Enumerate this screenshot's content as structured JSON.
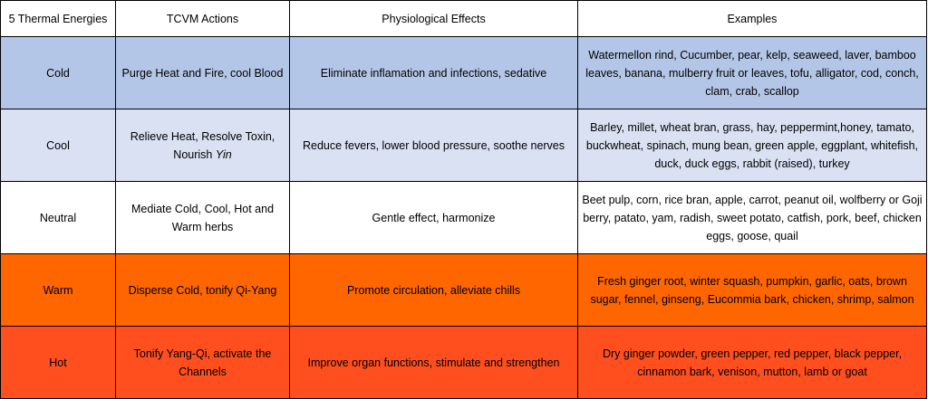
{
  "headers": [
    "5 Thermal Energies",
    "TCVM Actions",
    "Physiological Effects",
    "Examples"
  ],
  "colors": {
    "cold": "#b4c6e7",
    "cool": "#d9e1f2",
    "neutral": "#ffffff",
    "warm": "#ff6600",
    "hot": "#ff4f1f",
    "border": "#000000"
  },
  "rows": [
    {
      "energy": "Cold",
      "action": "Purge Heat and Fire, cool Blood",
      "action_emph": "",
      "action_tail": "",
      "effects": "Eliminate inflamation and infections, sedative",
      "examples": "Watermellon rind, Cucumber, pear, kelp, seaweed, laver, bamboo leaves, banana, mulberry fruit or leaves, tofu, alligator, cod, conch, clam, crab, scallop"
    },
    {
      "energy": "Cool",
      "action": "Relieve Heat, Resolve Toxin, Nourish ",
      "action_emph": "Yin",
      "action_tail": "",
      "effects": "Reduce fevers, lower blood pressure, soothe nerves",
      "examples": "Barley, millet, wheat bran, grass, hay, peppermint,honey, tamato, buckwheat, spinach, mung bean, green apple, eggplant, whitefish, duck, duck eggs, rabbit (raised), turkey"
    },
    {
      "energy": "Neutral",
      "action": "Mediate Cold, Cool, Hot and Warm herbs",
      "action_emph": "",
      "action_tail": "",
      "effects": "Gentle effect, harmonize",
      "examples": "Beet pulp, corn, rice bran, apple, carrot, peanut oil, wolfberry or Goji berry, patato, yam, radish, sweet potato, catfish, pork, beef, chicken eggs, goose, quail"
    },
    {
      "energy": "Warm",
      "action": "Disperse Cold, tonify Qi-Yang",
      "action_emph": "",
      "action_tail": "",
      "effects": "Promote circulation, alleviate chills",
      "examples": "Fresh ginger root, winter squash, pumpkin, garlic, oats, brown sugar, fennel, ginseng, Eucommia bark, chicken, shrimp, salmon"
    },
    {
      "energy": "Hot",
      "action": "Tonify Yang-Qi, activate the Channels",
      "action_emph": "",
      "action_tail": "",
      "effects": "Improve organ functions, stimulate and strengthen",
      "examples": "Dry ginger powder, green pepper, red pepper, black pepper, cinnamon bark, venison, mutton, lamb or goat"
    }
  ]
}
